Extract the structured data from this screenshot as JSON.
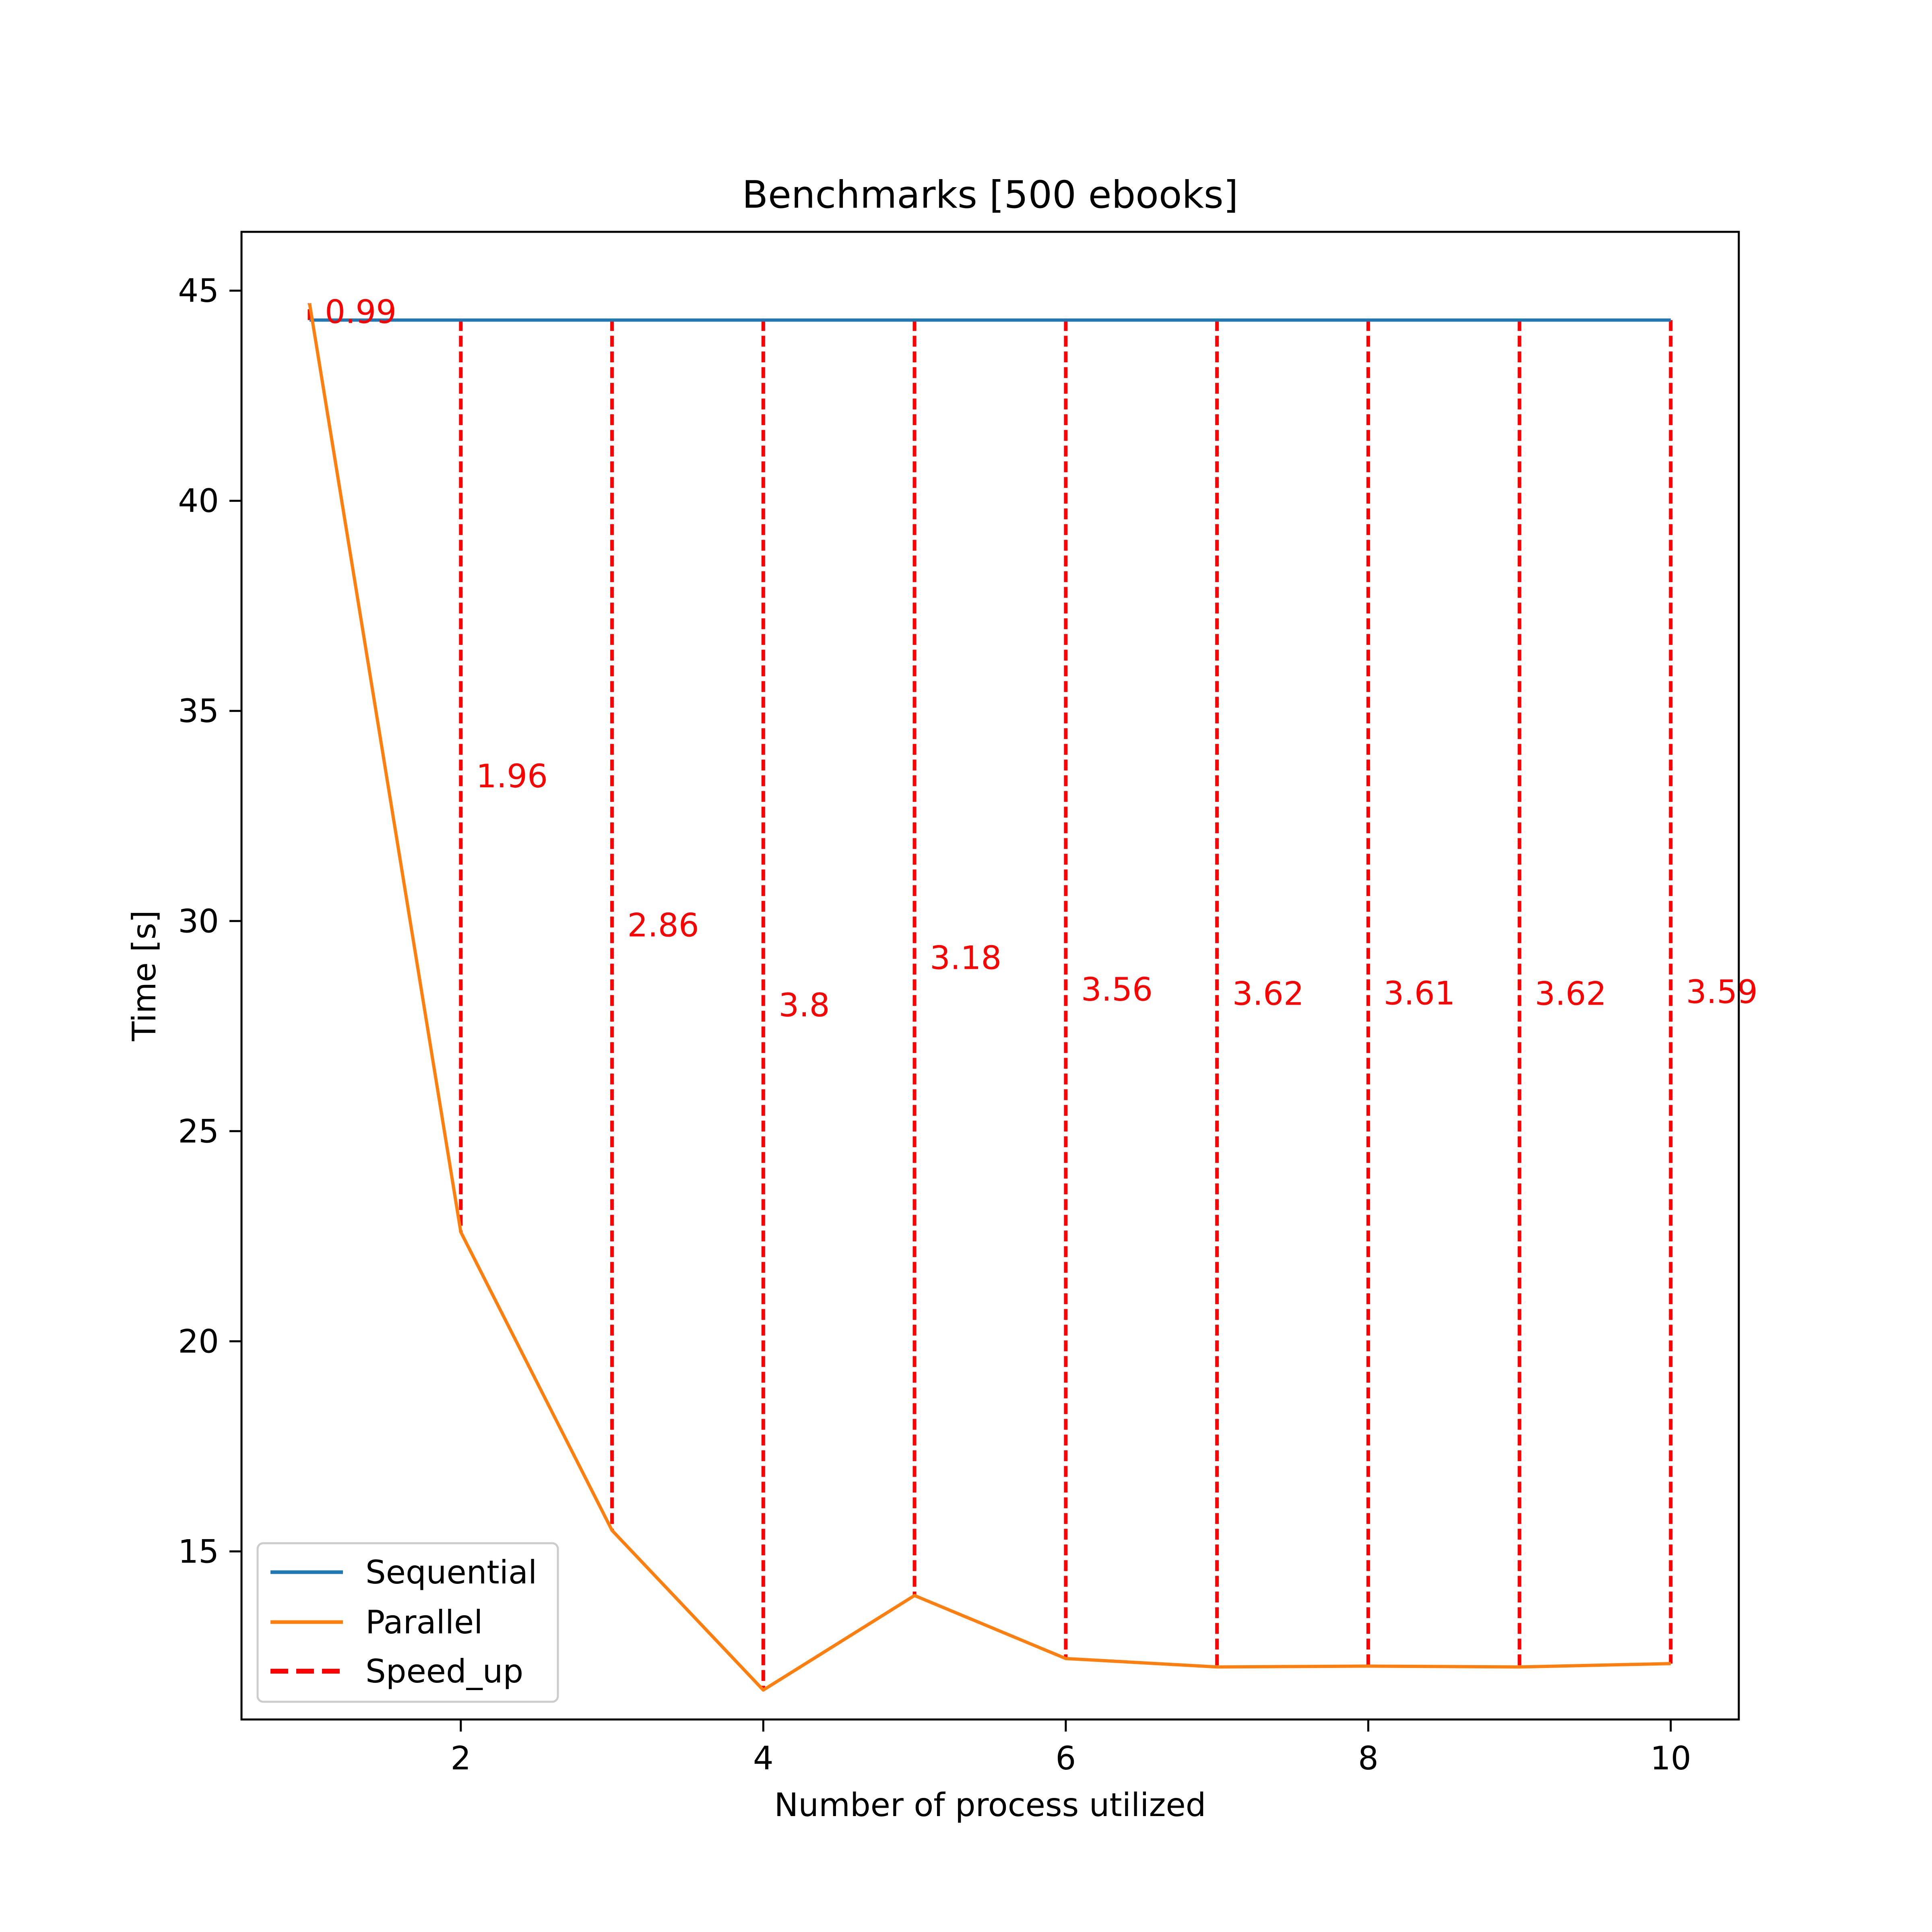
{
  "chart_data": {
    "type": "line",
    "title": "Benchmarks [500 ebooks]",
    "xlabel": "Number of process utilized",
    "ylabel": "Time [s]",
    "xlim": [
      0.55,
      10.45
    ],
    "ylim": [
      11.0,
      46.4
    ],
    "x_ticks": [
      2,
      4,
      6,
      8,
      10
    ],
    "y_ticks": [
      15,
      20,
      25,
      30,
      35,
      40,
      45
    ],
    "grid": false,
    "legend_position": "lower-left",
    "series": [
      {
        "name": "Sequential",
        "style": "solid",
        "color": "#1f77b4",
        "x": [
          1,
          2,
          3,
          4,
          5,
          6,
          7,
          8,
          9,
          10
        ],
        "y": [
          44.3,
          44.3,
          44.3,
          44.3,
          44.3,
          44.3,
          44.3,
          44.3,
          44.3,
          44.3
        ]
      },
      {
        "name": "Parallel",
        "style": "solid",
        "color": "#ff7f0e",
        "x": [
          1,
          2,
          3,
          4,
          5,
          6,
          7,
          8,
          9,
          10
        ],
        "y": [
          44.7,
          22.6,
          15.5,
          11.7,
          13.95,
          12.45,
          12.25,
          12.27,
          12.25,
          12.33
        ]
      },
      {
        "name": "Speed_up",
        "style": "dashed",
        "color": "#ff0000",
        "x": [
          1,
          2,
          3,
          4,
          5,
          6,
          7,
          8,
          9,
          10
        ],
        "labels": [
          "0.99",
          "1.96",
          "2.86",
          "3.8",
          "3.18",
          "3.56",
          "3.62",
          "3.61",
          "3.62",
          "3.59"
        ]
      }
    ]
  }
}
